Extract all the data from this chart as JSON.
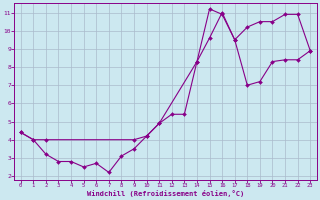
{
  "xlabel": "Windchill (Refroidissement éolien,°C)",
  "bg_color": "#cce8f0",
  "line_color": "#880088",
  "grid_color": "#aabbcc",
  "xlim": [
    -0.5,
    23.5
  ],
  "ylim": [
    1.8,
    11.5
  ],
  "xticks": [
    0,
    1,
    2,
    3,
    4,
    5,
    6,
    7,
    8,
    9,
    10,
    11,
    12,
    13,
    14,
    15,
    16,
    17,
    18,
    19,
    20,
    21,
    22,
    23
  ],
  "yticks": [
    2,
    3,
    4,
    5,
    6,
    7,
    8,
    9,
    10,
    11
  ],
  "line1_x": [
    0,
    1,
    2,
    3,
    4,
    5,
    6,
    7,
    8,
    9,
    10,
    11,
    12,
    13,
    14,
    15,
    16,
    17,
    18,
    19,
    20,
    21,
    22,
    23
  ],
  "line1_y": [
    4.4,
    4.0,
    3.2,
    2.8,
    2.8,
    2.5,
    2.7,
    2.2,
    3.1,
    3.5,
    4.2,
    4.9,
    5.4,
    5.4,
    8.3,
    11.2,
    10.9,
    9.5,
    10.2,
    10.5,
    10.5,
    10.9,
    10.9,
    8.9
  ],
  "line2_x": [
    0,
    1,
    2,
    9,
    10,
    11,
    14,
    15,
    16,
    17,
    18,
    19,
    20,
    21,
    22,
    23
  ],
  "line2_y": [
    4.4,
    4.0,
    4.0,
    4.0,
    4.2,
    4.9,
    8.3,
    9.6,
    11.0,
    9.5,
    7.0,
    7.2,
    8.3,
    8.4,
    8.4,
    8.9
  ]
}
